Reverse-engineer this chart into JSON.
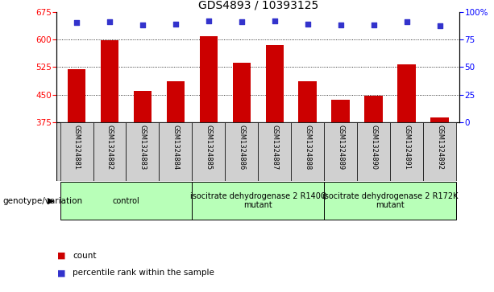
{
  "title": "GDS4893 / 10393125",
  "samples": [
    "GSM1324881",
    "GSM1324882",
    "GSM1324883",
    "GSM1324884",
    "GSM1324885",
    "GSM1324886",
    "GSM1324887",
    "GSM1324888",
    "GSM1324889",
    "GSM1324890",
    "GSM1324891",
    "GSM1324892"
  ],
  "counts": [
    520,
    597,
    460,
    487,
    608,
    538,
    585,
    487,
    437,
    447,
    533,
    390
  ],
  "percentiles": [
    90,
    91,
    88,
    89,
    92,
    91,
    92,
    89,
    88,
    88,
    91,
    87
  ],
  "ylim_left": [
    375,
    675
  ],
  "ylim_right": [
    0,
    100
  ],
  "yticks_left": [
    375,
    450,
    525,
    600,
    675
  ],
  "yticks_right": [
    0,
    25,
    50,
    75,
    100
  ],
  "bar_color": "#cc0000",
  "dot_color": "#3333cc",
  "grid_color": "#000000",
  "background_color": "#ffffff",
  "plot_bg_color": "#ffffff",
  "sample_area_color": "#d0d0d0",
  "group_colors": [
    "#b8ffb8",
    "#b8ffb8",
    "#b8ffb8"
  ],
  "groups": [
    {
      "label": "control",
      "start": 0,
      "end": 3
    },
    {
      "label": "isocitrate dehydrogenase 2 R140Q\nmutant",
      "start": 4,
      "end": 7
    },
    {
      "label": "isocitrate dehydrogenase 2 R172K\nmutant",
      "start": 8,
      "end": 11
    }
  ],
  "legend_items": [
    {
      "label": "count",
      "color": "#cc0000"
    },
    {
      "label": "percentile rank within the sample",
      "color": "#3333cc"
    }
  ],
  "genotype_label": "genotype/variation",
  "title_fontsize": 10,
  "tick_fontsize": 7.5,
  "label_fontsize": 7.5,
  "sample_fontsize": 6,
  "group_label_fontsize": 7
}
